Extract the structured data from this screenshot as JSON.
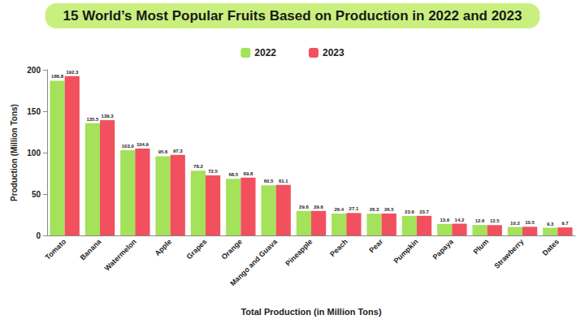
{
  "chart_data": {
    "type": "bar",
    "title": "15 World’s Most Popular Fruits Based on Production in 2022 and 2023",
    "x_label": "Total Production (in Million Tons)",
    "y_label": "Production (Million Tons)",
    "categories": [
      "Tomato",
      "Banana",
      "Watermelon",
      "Apple",
      "Grapes",
      "Orange",
      "Mango and Guava",
      "Pineapple",
      "Peach",
      "Pear",
      "Pumpkin",
      "Papaya",
      "Plum",
      "Strawberry",
      "Dates"
    ],
    "series": [
      {
        "name": "2022",
        "color": "#a3e25a",
        "values": [
          186.8,
          135.5,
          103.0,
          95.6,
          78.2,
          68.5,
          60.5,
          29.6,
          26.4,
          26.3,
          23.6,
          13.9,
          12.6,
          10.2,
          9.3
        ],
        "value_labels": [
          "186.8",
          "135.5",
          "103.0",
          "95.6",
          "78.2",
          "68.5",
          "60.5",
          "29.6",
          "26.4",
          "26.3",
          "23.6",
          "13.9",
          "12.6",
          "10.2",
          "9.3"
        ]
      },
      {
        "name": "2023",
        "color": "#f2505e",
        "values": [
          192.3,
          139.3,
          104.9,
          97.3,
          72.5,
          69.8,
          61.1,
          29.6,
          27.1,
          26.5,
          23.7,
          14.2,
          12.5,
          10.5,
          9.7
        ],
        "value_labels": [
          "192.3",
          "139.3",
          "104.9",
          "97.3",
          "72.5",
          "69.8",
          "61.1",
          "29.6",
          "27.1",
          "26.5",
          "23.7",
          "14.2",
          "12.5",
          "10.5",
          "9.7"
        ]
      }
    ],
    "ylim": [
      0,
      200
    ],
    "yticks": [
      0,
      50,
      100,
      150,
      200
    ],
    "grid": false,
    "legend": "top",
    "data_labels": true
  }
}
